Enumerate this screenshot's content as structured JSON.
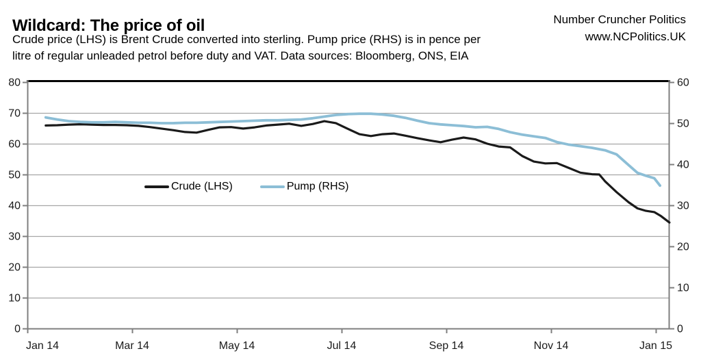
{
  "header": {
    "title": "Wildcard: The price of oil",
    "subtitle_lines": [
      "Crude price (LHS) is Brent Crude converted into sterling. Pump price (RHS) is in pence per",
      "litre of regular unleaded petrol before duty and VAT. Data sources: Bloomberg, ONS, EIA"
    ],
    "brand_line1": "Number Cruncher Politics",
    "brand_line2": "www.NCPolitics.UK"
  },
  "legend": {
    "crude_label": "Crude (LHS)",
    "pump_label": "Pump (RHS)"
  },
  "colors": {
    "crude": "#1a1a1a",
    "pump": "#8CBED6",
    "grid": "#a6a6a6",
    "axis": "#7f7f7f",
    "top_border": "#000000"
  },
  "chart_data": {
    "type": "line",
    "title": "Wildcard: The price of oil",
    "grid": "horizontal",
    "legend_position": "inside-left",
    "x_axis": {
      "tick_labels": [
        "Jan 14",
        "Mar 14",
        "May 14",
        "Jul 14",
        "Sep 14",
        "Nov 14",
        "Jan 15"
      ],
      "unit": "months",
      "range_months": [
        0,
        12.3
      ]
    },
    "left_axis": {
      "ticks": [
        80,
        70,
        60,
        50,
        40,
        30,
        20,
        10,
        0
      ],
      "range": [
        0,
        80
      ],
      "applies_to": "Crude (LHS)"
    },
    "right_axis": {
      "ticks": [
        60,
        50,
        40,
        30,
        20,
        10,
        0
      ],
      "range": [
        0,
        60
      ],
      "applies_to": "Pump (RHS)"
    },
    "series": [
      {
        "name": "Crude (LHS)",
        "axis": "left",
        "color": "#1a1a1a",
        "points": [
          [
            0.35,
            65.9
          ],
          [
            0.57,
            66.0
          ],
          [
            0.79,
            66.2
          ],
          [
            1.01,
            66.3
          ],
          [
            1.23,
            66.2
          ],
          [
            1.45,
            66.1
          ],
          [
            1.68,
            66.1
          ],
          [
            1.9,
            66.0
          ],
          [
            2.12,
            65.8
          ],
          [
            2.34,
            65.4
          ],
          [
            2.56,
            64.9
          ],
          [
            2.78,
            64.4
          ],
          [
            3.01,
            63.8
          ],
          [
            3.23,
            63.6
          ],
          [
            3.45,
            64.5
          ],
          [
            3.67,
            65.3
          ],
          [
            3.89,
            65.4
          ],
          [
            4.12,
            64.9
          ],
          [
            4.34,
            65.3
          ],
          [
            4.56,
            65.9
          ],
          [
            4.78,
            66.2
          ],
          [
            5.0,
            66.5
          ],
          [
            5.23,
            65.8
          ],
          [
            5.45,
            66.4
          ],
          [
            5.67,
            67.3
          ],
          [
            5.89,
            66.7
          ],
          [
            6.11,
            64.9
          ],
          [
            6.34,
            63.1
          ],
          [
            6.56,
            62.5
          ],
          [
            6.78,
            63.1
          ],
          [
            7.0,
            63.3
          ],
          [
            7.22,
            62.6
          ],
          [
            7.45,
            61.8
          ],
          [
            7.67,
            61.1
          ],
          [
            7.89,
            60.5
          ],
          [
            8.11,
            61.3
          ],
          [
            8.33,
            62.0
          ],
          [
            8.56,
            61.4
          ],
          [
            8.78,
            60.0
          ],
          [
            9.0,
            59.1
          ],
          [
            9.22,
            58.8
          ],
          [
            9.45,
            56.0
          ],
          [
            9.67,
            54.2
          ],
          [
            9.89,
            53.6
          ],
          [
            10.11,
            53.7
          ],
          [
            10.33,
            52.2
          ],
          [
            10.56,
            50.6
          ],
          [
            10.78,
            50.1
          ],
          [
            10.92,
            50.0
          ],
          [
            11.03,
            47.8
          ],
          [
            11.25,
            44.3
          ],
          [
            11.48,
            41.0
          ],
          [
            11.65,
            39.0
          ],
          [
            11.81,
            38.2
          ],
          [
            11.97,
            37.8
          ],
          [
            12.1,
            36.5
          ],
          [
            12.26,
            34.4
          ]
        ]
      },
      {
        "name": "Pump (RHS)",
        "axis": "right",
        "color": "#8CBED6",
        "points": [
          [
            0.35,
            51.4
          ],
          [
            0.57,
            50.9
          ],
          [
            0.79,
            50.5
          ],
          [
            1.01,
            50.3
          ],
          [
            1.23,
            50.2
          ],
          [
            1.45,
            50.2
          ],
          [
            1.68,
            50.3
          ],
          [
            1.9,
            50.2
          ],
          [
            2.12,
            50.1
          ],
          [
            2.34,
            50.1
          ],
          [
            2.56,
            50.0
          ],
          [
            2.78,
            50.0
          ],
          [
            3.01,
            50.1
          ],
          [
            3.23,
            50.1
          ],
          [
            3.45,
            50.2
          ],
          [
            3.67,
            50.3
          ],
          [
            3.89,
            50.4
          ],
          [
            4.12,
            50.5
          ],
          [
            4.34,
            50.6
          ],
          [
            4.56,
            50.7
          ],
          [
            4.78,
            50.7
          ],
          [
            5.0,
            50.8
          ],
          [
            5.23,
            50.9
          ],
          [
            5.45,
            51.2
          ],
          [
            5.67,
            51.6
          ],
          [
            5.89,
            52.0
          ],
          [
            6.11,
            52.2
          ],
          [
            6.34,
            52.3
          ],
          [
            6.56,
            52.3
          ],
          [
            6.78,
            52.1
          ],
          [
            7.0,
            51.8
          ],
          [
            7.22,
            51.3
          ],
          [
            7.45,
            50.6
          ],
          [
            7.67,
            50.0
          ],
          [
            7.89,
            49.7
          ],
          [
            8.11,
            49.5
          ],
          [
            8.33,
            49.3
          ],
          [
            8.56,
            49.0
          ],
          [
            8.78,
            49.1
          ],
          [
            9.0,
            48.6
          ],
          [
            9.22,
            47.8
          ],
          [
            9.45,
            47.2
          ],
          [
            9.67,
            46.8
          ],
          [
            9.89,
            46.4
          ],
          [
            10.11,
            45.4
          ],
          [
            10.33,
            44.8
          ],
          [
            10.56,
            44.4
          ],
          [
            10.78,
            44.0
          ],
          [
            11.03,
            43.4
          ],
          [
            11.25,
            42.4
          ],
          [
            11.48,
            39.8
          ],
          [
            11.65,
            37.9
          ],
          [
            11.81,
            37.2
          ],
          [
            11.97,
            36.6
          ],
          [
            12.08,
            34.8
          ]
        ]
      }
    ]
  }
}
